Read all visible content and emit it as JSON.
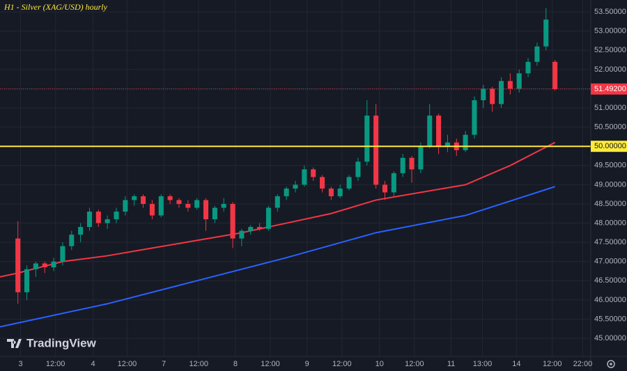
{
  "chart_data": {
    "type": "candlestick",
    "title": "H1 - Silver (XAG/USD) hourly",
    "watermark": "TradingView",
    "x": [
      0,
      1,
      2,
      3,
      4,
      5,
      6,
      7,
      8,
      9,
      10,
      11,
      12,
      13,
      14,
      15,
      16,
      17,
      18,
      19,
      20,
      21,
      22,
      23,
      24,
      25,
      26,
      27,
      28,
      29,
      30,
      31,
      32,
      33,
      34,
      35,
      36,
      37,
      38,
      39,
      40,
      41,
      42,
      43,
      44,
      45,
      46,
      47,
      48,
      49,
      50,
      51,
      52,
      53,
      54,
      55,
      56,
      57,
      58,
      59,
      60
    ],
    "open": [
      47.6,
      46.2,
      46.8,
      46.95,
      46.85,
      47.0,
      47.4,
      47.7,
      47.9,
      48.3,
      48.0,
      48.1,
      48.3,
      48.6,
      48.7,
      48.5,
      48.2,
      48.7,
      48.6,
      48.5,
      48.4,
      48.6,
      48.1,
      48.4,
      48.5,
      47.6,
      47.8,
      47.9,
      47.85,
      48.4,
      48.7,
      48.9,
      49.0,
      49.4,
      49.2,
      48.9,
      48.7,
      48.9,
      49.2,
      49.6,
      50.8,
      49.0,
      48.8,
      49.3,
      49.7,
      49.4,
      50.0,
      50.8,
      50.0,
      50.1,
      49.9,
      50.3,
      51.2,
      51.5,
      51.1,
      51.7,
      51.5,
      51.9,
      52.2,
      52.6,
      52.2
    ],
    "high": [
      48.05,
      46.9,
      47.0,
      47.0,
      47.1,
      47.5,
      47.8,
      48.0,
      48.4,
      48.35,
      48.2,
      48.4,
      48.7,
      48.75,
      48.75,
      48.6,
      48.75,
      48.75,
      48.65,
      48.6,
      48.65,
      48.65,
      48.45,
      48.65,
      48.55,
      47.85,
      47.95,
      48.0,
      48.45,
      48.75,
      48.95,
      49.1,
      49.5,
      49.45,
      49.25,
      48.95,
      49.0,
      49.25,
      49.7,
      51.2,
      51.1,
      49.1,
      49.35,
      49.8,
      49.75,
      50.1,
      51.1,
      50.85,
      50.3,
      50.2,
      50.4,
      51.3,
      51.6,
      51.55,
      51.8,
      51.9,
      52.0,
      52.3,
      52.7,
      53.6,
      52.25
    ],
    "low": [
      45.9,
      46.0,
      46.6,
      46.7,
      46.75,
      46.9,
      47.3,
      47.5,
      47.8,
      47.9,
      47.85,
      48.0,
      48.2,
      48.45,
      48.4,
      48.1,
      48.15,
      48.5,
      48.4,
      48.3,
      48.35,
      47.8,
      48.0,
      48.3,
      47.35,
      47.4,
      47.7,
      47.8,
      47.8,
      48.3,
      48.6,
      48.8,
      48.95,
      49.1,
      48.8,
      48.6,
      48.65,
      48.85,
      49.1,
      49.5,
      48.9,
      48.6,
      48.7,
      49.2,
      49.05,
      49.3,
      49.95,
      49.8,
      49.85,
      49.75,
      49.85,
      50.2,
      51.0,
      50.9,
      51.0,
      51.35,
      51.4,
      51.8,
      52.1,
      52.5,
      51.45
    ],
    "close": [
      46.2,
      46.8,
      46.95,
      46.85,
      47.0,
      47.4,
      47.7,
      47.9,
      48.3,
      48.0,
      48.1,
      48.3,
      48.6,
      48.7,
      48.5,
      48.2,
      48.7,
      48.6,
      48.5,
      48.4,
      48.6,
      48.1,
      48.4,
      48.5,
      47.6,
      47.8,
      47.9,
      47.85,
      48.4,
      48.7,
      48.9,
      49.0,
      49.4,
      49.2,
      48.9,
      48.7,
      48.9,
      49.2,
      49.6,
      50.8,
      49.0,
      48.8,
      49.3,
      49.7,
      49.4,
      50.0,
      50.8,
      50.0,
      50.1,
      49.9,
      50.3,
      51.2,
      51.5,
      51.1,
      51.7,
      51.5,
      51.9,
      52.2,
      52.6,
      53.3,
      51.492
    ],
    "up_color": "#089981",
    "down_color": "#f23645",
    "series": [
      {
        "color": "#f23645",
        "x": [
          -2,
          0,
          5,
          10,
          15,
          20,
          25,
          30,
          35,
          40,
          45,
          50,
          55,
          60
        ],
        "values": [
          46.6,
          46.7,
          47.0,
          47.15,
          47.35,
          47.55,
          47.75,
          48.0,
          48.25,
          48.6,
          48.8,
          49.0,
          49.5,
          50.1
        ]
      },
      {
        "color": "#2962ff",
        "x": [
          -2,
          0,
          10,
          20,
          30,
          40,
          50,
          60
        ],
        "values": [
          45.3,
          45.4,
          45.9,
          46.5,
          47.1,
          47.75,
          48.2,
          48.95
        ]
      }
    ],
    "hline": {
      "value": 50,
      "label": "50.00000",
      "color": "#ffeb3b"
    },
    "last_price": {
      "value": 51.492,
      "label": "51.49200",
      "color": "#f23645"
    },
    "xlim": [
      -2,
      64
    ],
    "ylim": [
      44.53,
      53.81
    ],
    "yticks": [
      {
        "value": 45,
        "label": "45.00000"
      },
      {
        "value": 45.5,
        "label": "45.50000"
      },
      {
        "value": 46,
        "label": "46.00000"
      },
      {
        "value": 46.5,
        "label": "46.50000"
      },
      {
        "value": 47,
        "label": "47.00000"
      },
      {
        "value": 47.5,
        "label": "47.50000"
      },
      {
        "value": 48,
        "label": "48.00000"
      },
      {
        "value": 48.5,
        "label": "48.50000"
      },
      {
        "value": 49,
        "label": "49.00000"
      },
      {
        "value": 49.5,
        "label": "49.50000"
      },
      {
        "value": 50,
        "label": "50.00000"
      },
      {
        "value": 50.5,
        "label": "50.50000"
      },
      {
        "value": 51,
        "label": "51.00000"
      },
      {
        "value": 51.5,
        "label": "51.50000"
      },
      {
        "value": 52,
        "label": "52.00000"
      },
      {
        "value": 52.5,
        "label": "52.50000"
      },
      {
        "value": 53,
        "label": "53.00000"
      },
      {
        "value": 53.5,
        "label": "53.50000"
      }
    ],
    "xticks": [
      {
        "value": 0.3,
        "label": "3"
      },
      {
        "value": 4.2,
        "label": "12:00"
      },
      {
        "value": 8.4,
        "label": "4"
      },
      {
        "value": 12.2,
        "label": "12:00"
      },
      {
        "value": 16.3,
        "label": "7"
      },
      {
        "value": 20.2,
        "label": "12:00"
      },
      {
        "value": 24.3,
        "label": "8"
      },
      {
        "value": 28.2,
        "label": "12:00"
      },
      {
        "value": 32.3,
        "label": "9"
      },
      {
        "value": 36.2,
        "label": "12:00"
      },
      {
        "value": 40.4,
        "label": "10"
      },
      {
        "value": 44.3,
        "label": "12:00"
      },
      {
        "value": 48.4,
        "label": "11"
      },
      {
        "value": 51.9,
        "label": "13:00"
      },
      {
        "value": 55.7,
        "label": "14"
      },
      {
        "value": 59.7,
        "label": "12:00"
      },
      {
        "value": 63.1,
        "label": "22:00"
      }
    ],
    "grid": true
  }
}
